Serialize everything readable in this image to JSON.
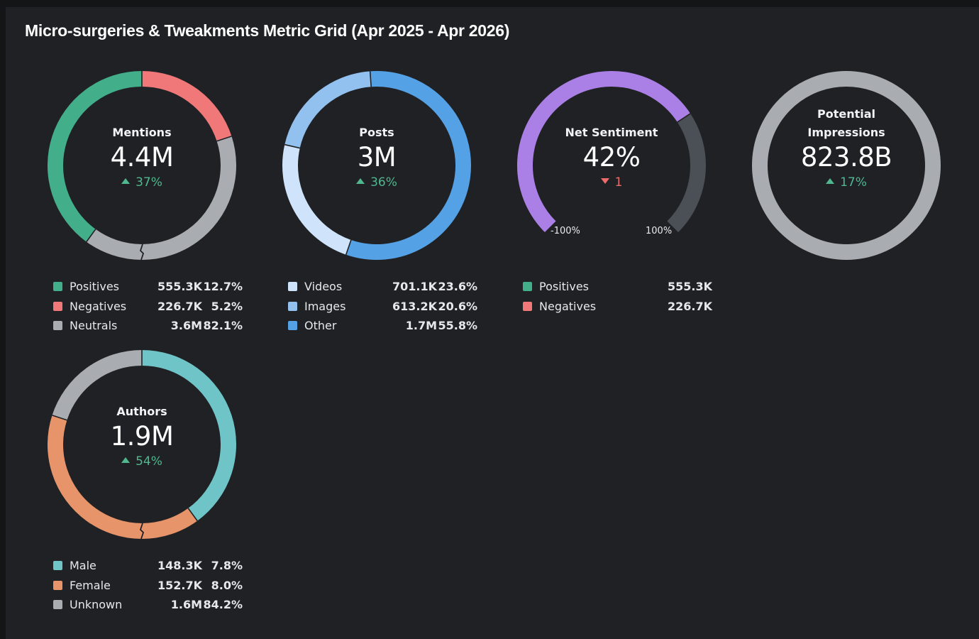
{
  "title": "Micro-surgeries & Tweakments Metric Grid (Apr 2025 - Apr 2026)",
  "colors": {
    "positive": "#43ae8a",
    "negative": "#f07878",
    "neutral": "#a9adb1",
    "light_blue": "#cfe3fb",
    "mid_blue": "#92c1f0",
    "blue": "#55a1e6",
    "purple": "#ab80e6",
    "dark_track": "#4a5056",
    "teal": "#6ec4c7",
    "orange": "#e8946a",
    "delta_up": "#4fb88f",
    "delta_down": "#ee6b6b"
  },
  "cards": {
    "mentions": {
      "label": "Mentions",
      "value": "4.4M",
      "delta": "37%",
      "delta_dir": "up",
      "legend": [
        {
          "name": "Positives",
          "value": "555.3K",
          "pct": "12.7%"
        },
        {
          "name": "Negatives",
          "value": "226.7K",
          "pct": "5.2%"
        },
        {
          "name": "Neutrals",
          "value": "3.6M",
          "pct": "82.1%"
        }
      ]
    },
    "posts": {
      "label": "Posts",
      "value": "3M",
      "delta": "36%",
      "delta_dir": "up",
      "legend": [
        {
          "name": "Videos",
          "value": "701.1K",
          "pct": "23.6%"
        },
        {
          "name": "Images",
          "value": "613.2K",
          "pct": "20.6%"
        },
        {
          "name": "Other",
          "value": "1.7M",
          "pct": "55.8%"
        }
      ]
    },
    "sentiment": {
      "label": "Net Sentiment",
      "value": "42%",
      "delta": "1",
      "delta_dir": "down",
      "range_min": "-100%",
      "range_max": "100%",
      "legend": [
        {
          "name": "Positives",
          "value": "555.3K"
        },
        {
          "name": "Negatives",
          "value": "226.7K"
        }
      ]
    },
    "impressions": {
      "label_line1": "Potential",
      "label_line2": "Impressions",
      "value": "823.8B",
      "delta": "17%",
      "delta_dir": "up"
    },
    "authors": {
      "label": "Authors",
      "value": "1.9M",
      "delta": "54%",
      "delta_dir": "up",
      "legend": [
        {
          "name": "Male",
          "value": "148.3K",
          "pct": "7.8%"
        },
        {
          "name": "Female",
          "value": "152.7K",
          "pct": "8.0%"
        },
        {
          "name": "Unknown",
          "value": "1.6M",
          "pct": "84.2%"
        }
      ]
    }
  },
  "chart_data": [
    {
      "type": "pie",
      "title": "Mentions",
      "categories": [
        "Positives",
        "Negatives",
        "Neutrals"
      ],
      "values": [
        555300,
        226700,
        3600000
      ],
      "percents": [
        12.7,
        5.2,
        82.1
      ],
      "total": "4.4M",
      "display_share": [
        0.4,
        0.2,
        0.4
      ]
    },
    {
      "type": "pie",
      "title": "Posts",
      "categories": [
        "Videos",
        "Images",
        "Other"
      ],
      "values": [
        701100,
        613200,
        1700000
      ],
      "percents": [
        23.6,
        20.6,
        55.8
      ],
      "total": "3M"
    },
    {
      "type": "gauge",
      "title": "Net Sentiment",
      "value": 42,
      "min": -100,
      "max": 100,
      "categories": [
        "Positives",
        "Negatives"
      ],
      "values": [
        555300,
        226700
      ]
    },
    {
      "type": "pie",
      "title": "Potential Impressions",
      "value": "823.8B",
      "categories": [
        "Potential Impressions"
      ],
      "values": [
        1
      ]
    },
    {
      "type": "pie",
      "title": "Authors",
      "categories": [
        "Male",
        "Female",
        "Unknown"
      ],
      "values": [
        148300,
        152700,
        1600000
      ],
      "percents": [
        7.8,
        8.0,
        84.2
      ],
      "total": "1.9M",
      "display_share": [
        0.4,
        0.4,
        0.2
      ]
    }
  ]
}
